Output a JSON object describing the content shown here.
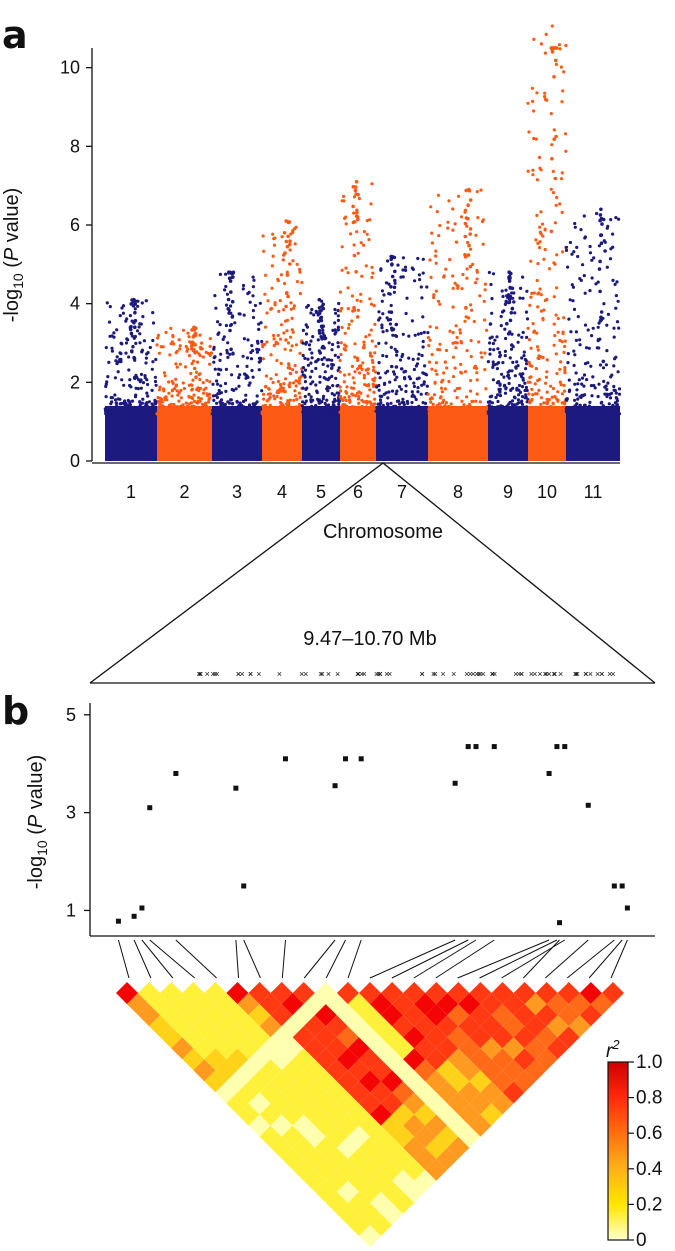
{
  "panel_a": {
    "letter": "a"
  },
  "panel_b": {
    "letter": "b"
  },
  "region_label": "9.47–10.70 Mb",
  "colors": {
    "odd_chr": "#1c1a7e",
    "even_chr": "#fd5a15"
  },
  "chart_data": [
    {
      "type": "scatter",
      "description_kind": "manhattan",
      "xlabel": "Chromosome",
      "ylabel_prefix": "-log",
      "ylabel_sub": "10",
      "ylabel_suffix_italic": "P",
      "ylabel_suffix": " value)",
      "ylim": [
        0,
        10.5
      ],
      "yticks": [
        0,
        2,
        4,
        6,
        8,
        10
      ],
      "categories": [
        "1",
        "2",
        "3",
        "4",
        "5",
        "6",
        "7",
        "8",
        "9",
        "10",
        "11"
      ],
      "peaks": [
        4.1,
        3.4,
        4.8,
        6.1,
        4.1,
        7.1,
        5.2,
        6.9,
        4.8,
        11.2,
        6.4
      ],
      "highlight": {
        "chromosome": "6"
      }
    },
    {
      "type": "scatter",
      "ylabel_prefix": "-log",
      "ylabel_sub": "10",
      "ylabel_suffix_italic": "P",
      "ylabel_suffix": " value)",
      "ylim": [
        0.6,
        5.2
      ],
      "yticks": [
        1,
        3,
        5
      ],
      "points": [
        {
          "x": 0.02,
          "y": 0.78
        },
        {
          "x": 0.05,
          "y": 0.88
        },
        {
          "x": 0.065,
          "y": 1.05
        },
        {
          "x": 0.08,
          "y": 3.1
        },
        {
          "x": 0.13,
          "y": 3.8
        },
        {
          "x": 0.245,
          "y": 3.5
        },
        {
          "x": 0.26,
          "y": 1.5
        },
        {
          "x": 0.34,
          "y": 4.1
        },
        {
          "x": 0.435,
          "y": 3.55
        },
        {
          "x": 0.455,
          "y": 4.1
        },
        {
          "x": 0.485,
          "y": 4.1
        },
        {
          "x": 0.665,
          "y": 3.6
        },
        {
          "x": 0.69,
          "y": 4.35
        },
        {
          "x": 0.705,
          "y": 4.35
        },
        {
          "x": 0.74,
          "y": 4.35
        },
        {
          "x": 0.845,
          "y": 3.8
        },
        {
          "x": 0.86,
          "y": 4.35
        },
        {
          "x": 0.875,
          "y": 4.35
        },
        {
          "x": 0.865,
          "y": 0.75
        },
        {
          "x": 0.92,
          "y": 3.15
        },
        {
          "x": 0.97,
          "y": 1.5
        },
        {
          "x": 0.985,
          "y": 1.5
        },
        {
          "x": 0.995,
          "y": 1.05
        }
      ]
    },
    {
      "type": "heatmap",
      "description_kind": "ld_triangle",
      "legend_title": "r",
      "legend_title_sup": "2",
      "scale_ticks": [
        "1.0",
        "0.8",
        "0.6",
        "0.4",
        "0.2",
        "0"
      ],
      "scale_colors": [
        "#cc0000",
        "#ff2a0a",
        "#ff6f10",
        "#ffb11a",
        "#ffe600",
        "#ffffcc"
      ]
    }
  ]
}
